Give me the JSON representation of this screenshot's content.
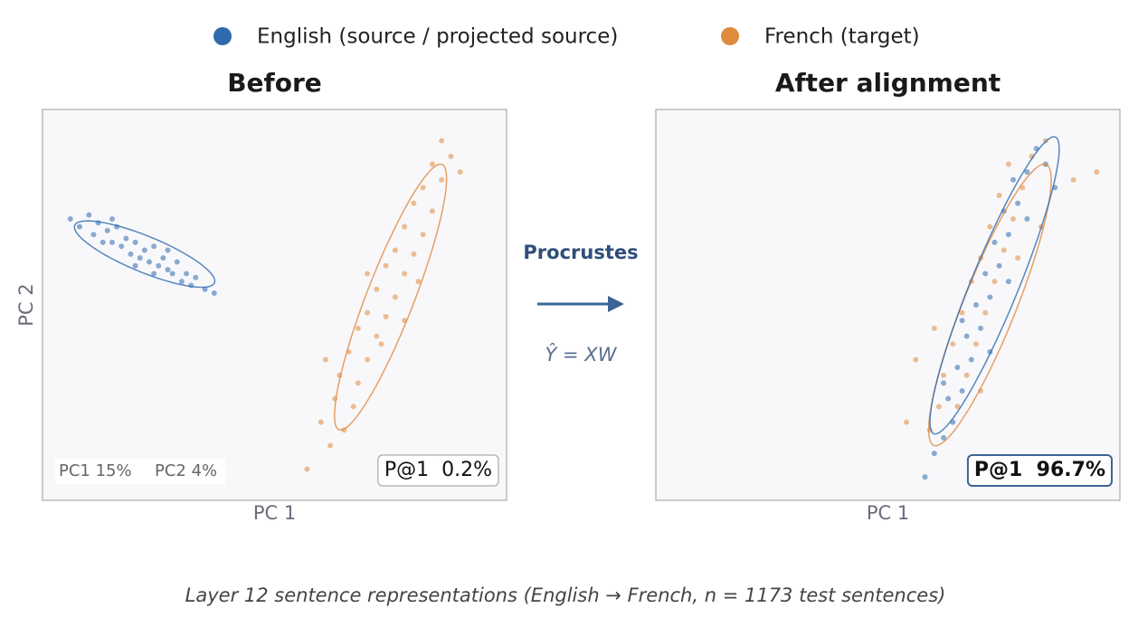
{
  "chart_data": [
    {
      "type": "scatter",
      "title": "Before",
      "xlabel": "PC 1",
      "ylabel": "PC 2",
      "xlim": [
        0,
        100
      ],
      "ylim": [
        0,
        100
      ],
      "annotations": {
        "variance": [
          "PC1 15%",
          "PC2 4%"
        ],
        "score": "P@1  0.2%"
      },
      "series": [
        {
          "name": "English (source / projected source)",
          "color": "#2e6aad",
          "x": [
            6,
            8,
            10,
            11,
            12,
            14,
            15,
            16,
            17,
            18,
            19,
            20,
            21,
            22,
            23,
            24,
            25,
            26,
            27,
            28,
            29,
            30,
            31,
            32,
            33,
            35,
            37,
            20,
            15,
            27,
            13,
            24
          ],
          "y": [
            72,
            70,
            73,
            68,
            71,
            69,
            66,
            70,
            65,
            67,
            63,
            66,
            62,
            64,
            61,
            65,
            60,
            62,
            59,
            58,
            61,
            56,
            58,
            55,
            57,
            54,
            53,
            60,
            72,
            64,
            66,
            58
          ],
          "ellipse": {
            "center": [
              22,
              63
            ],
            "major": [
              15,
              -7.5
            ],
            "minor": [
              2,
              4
            ]
          }
        },
        {
          "name": "French (target)",
          "color": "#e08a3c",
          "x": [
            57,
            62,
            60,
            65,
            63,
            67,
            64,
            68,
            66,
            70,
            68,
            72,
            70,
            74,
            72,
            76,
            74,
            78,
            76,
            80,
            78,
            82,
            80,
            84,
            82,
            86,
            84,
            88,
            86,
            70,
            78,
            73,
            81,
            61,
            90
          ],
          "y": [
            8,
            14,
            20,
            18,
            26,
            24,
            32,
            30,
            38,
            36,
            44,
            42,
            48,
            47,
            54,
            52,
            60,
            58,
            64,
            63,
            70,
            68,
            76,
            74,
            80,
            82,
            86,
            88,
            92,
            58,
            46,
            40,
            56,
            36,
            84
          ],
          "ellipse": {
            "center": [
              75,
              52
            ],
            "major": [
              11,
              34
            ],
            "minor": [
              -5,
              1.5
            ]
          }
        }
      ]
    },
    {
      "type": "scatter",
      "title": "After alignment",
      "xlabel": "PC 1",
      "xlim": [
        0,
        100
      ],
      "ylim": [
        0,
        100
      ],
      "annotations": {
        "score": "P@1  96.7%"
      },
      "series": [
        {
          "color": "#e08a3c",
          "x": [
            54,
            59,
            61,
            65,
            62,
            67,
            64,
            69,
            66,
            71,
            68,
            73,
            70,
            75,
            72,
            77,
            74,
            79,
            76,
            81,
            84,
            90,
            56,
            83,
            60,
            95,
            78,
            70
          ],
          "y": [
            20,
            18,
            24,
            24,
            32,
            32,
            40,
            40,
            48,
            48,
            56,
            56,
            62,
            64,
            70,
            72,
            78,
            80,
            86,
            88,
            92,
            82,
            36,
            70,
            44,
            84,
            62,
            28
          ],
          "ellipse": {
            "center": [
              72,
              50
            ],
            "major": [
              12,
              36
            ],
            "minor": [
              -5.5,
              1.8
            ]
          }
        },
        {
          "color": "#2e6aad",
          "x": [
            58,
            60,
            62,
            64,
            63,
            66,
            65,
            68,
            67,
            70,
            69,
            72,
            71,
            74,
            73,
            76,
            75,
            78,
            77,
            80,
            82,
            84,
            66,
            76,
            72,
            80,
            62,
            86
          ],
          "y": [
            6,
            12,
            16,
            20,
            26,
            28,
            34,
            36,
            42,
            44,
            50,
            52,
            58,
            60,
            66,
            68,
            74,
            76,
            82,
            84,
            90,
            86,
            46,
            56,
            38,
            72,
            30,
            80
          ],
          "ellipse": {
            "center": [
              73,
              55
            ],
            "major": [
              13,
              38
            ],
            "minor": [
              -5,
              1.5
            ]
          }
        }
      ]
    }
  ],
  "method": "Procrustes",
  "formula": "Ŷ = XW",
  "caption": "Layer 12 sentence representations (English → French, n = 1173 test sentences)"
}
